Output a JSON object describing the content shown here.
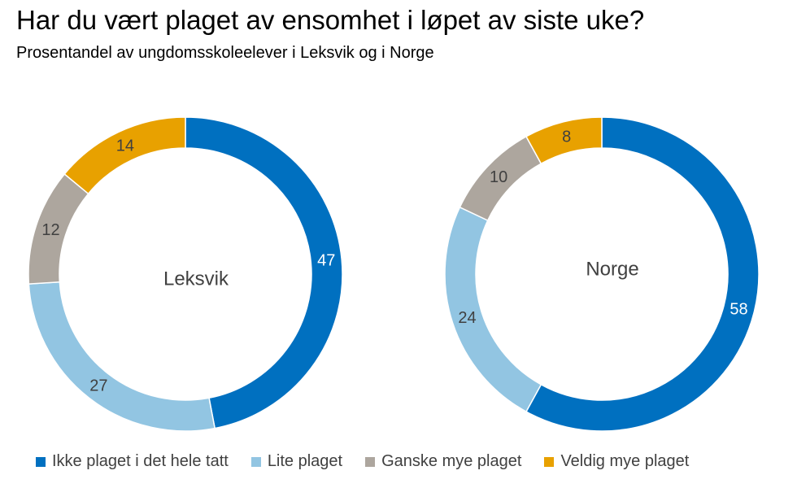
{
  "title": "Har du vært plaget av ensomhet i løpet av siste uke?",
  "subtitle": "Prosentandel av ungdomsskoleelever i Leksvik og i Norge",
  "colors": {
    "ikke": "#0070C0",
    "lite": "#92C5E2",
    "ganske": "#ADA69E",
    "veldig": "#E8A100"
  },
  "legend": [
    {
      "label": "Ikke plaget i det hele tatt",
      "color": "#0070C0"
    },
    {
      "label": "Lite plaget",
      "color": "#92C5E2"
    },
    {
      "label": "Ganske mye plaget",
      "color": "#ADA69E"
    },
    {
      "label": "Veldig mye plaget",
      "color": "#E8A100"
    }
  ],
  "chart_data": [
    {
      "type": "pie",
      "variant": "donut",
      "center_label": "Leksvik",
      "categories": [
        "Ikke plaget i det hele tatt",
        "Lite plaget",
        "Ganske mye plaget",
        "Veldig mye plaget"
      ],
      "values": [
        47,
        27,
        12,
        14
      ],
      "colors": [
        "#0070C0",
        "#92C5E2",
        "#ADA69E",
        "#E8A100"
      ]
    },
    {
      "type": "pie",
      "variant": "donut",
      "center_label": "Norge",
      "categories": [
        "Ikke plaget i det hele tatt",
        "Lite plaget",
        "Ganske mye plaget",
        "Veldig mye plaget"
      ],
      "values": [
        58,
        24,
        10,
        8
      ],
      "colors": [
        "#0070C0",
        "#92C5E2",
        "#ADA69E",
        "#E8A100"
      ]
    }
  ]
}
